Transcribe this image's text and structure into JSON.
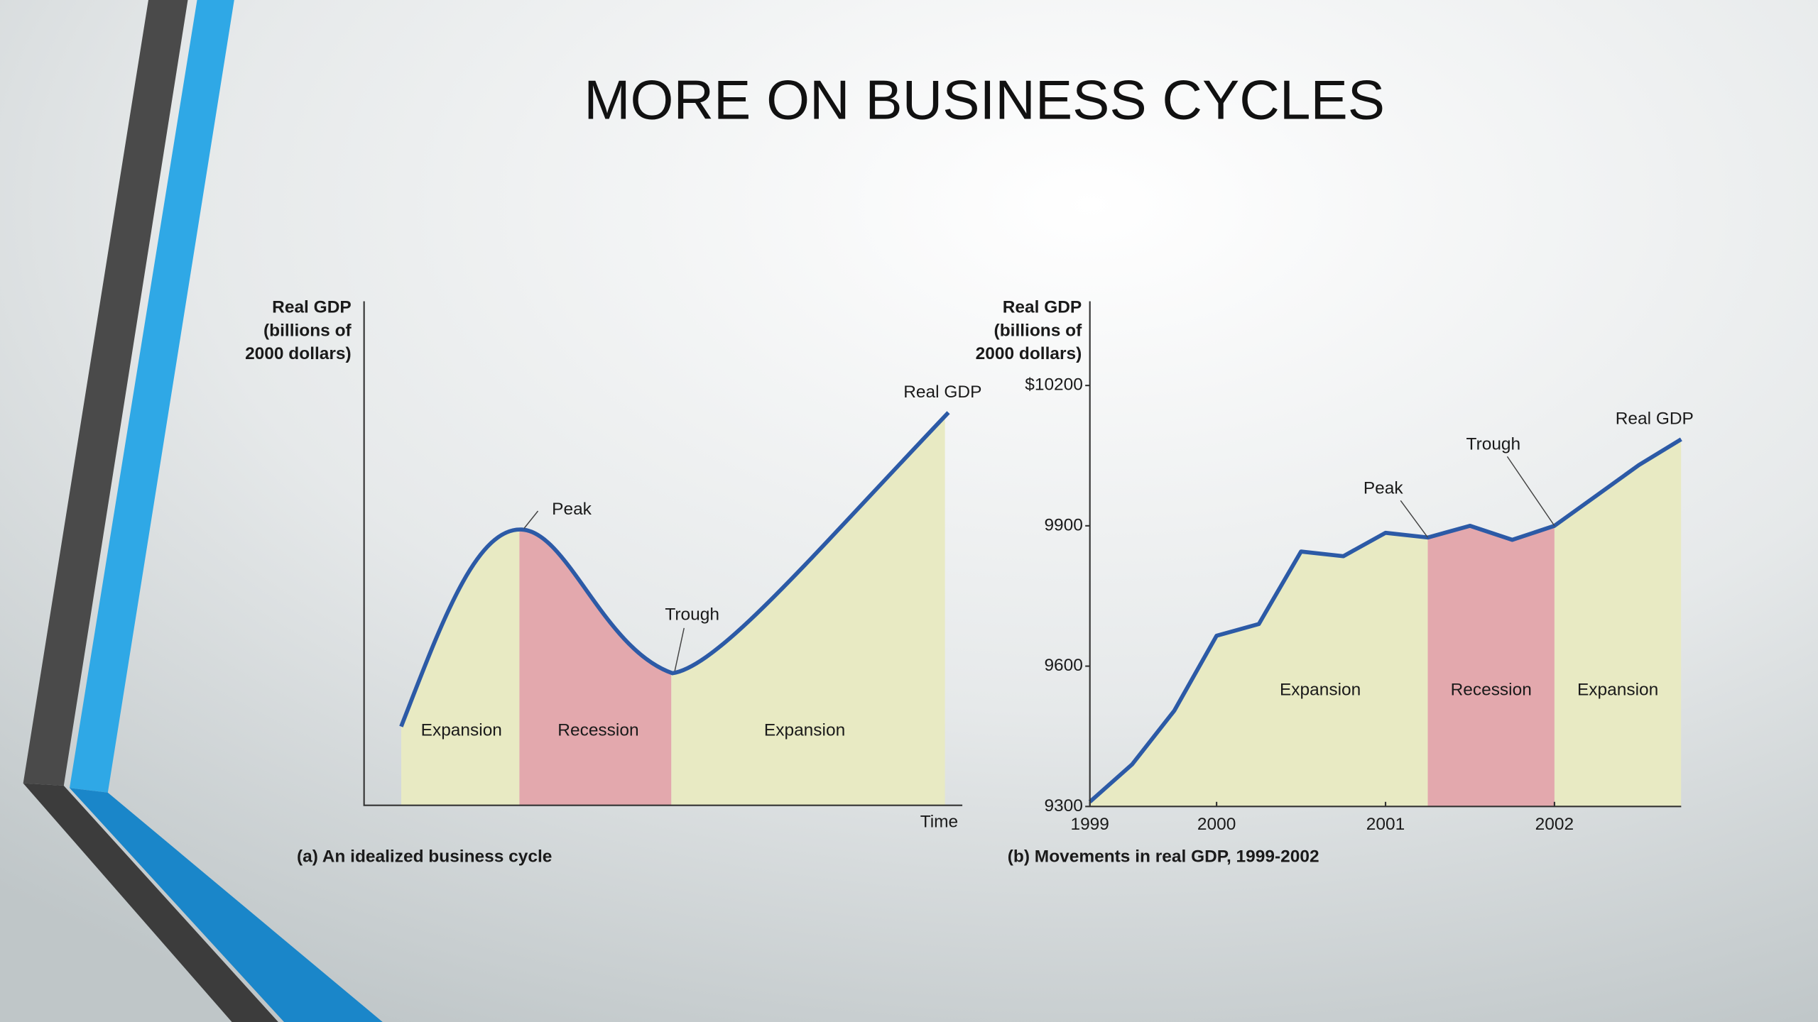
{
  "slide_title": "MORE ON BUSINESS CYCLES",
  "idealized": {
    "y_label": [
      "Real GDP",
      "(billions of",
      "2000 dollars)"
    ],
    "x_label": "Time",
    "caption": "(a)  An idealized business cycle",
    "phases": [
      "Expansion",
      "Recession",
      "Expansion"
    ],
    "annotations": [
      "Peak",
      "Trough",
      "Real GDP"
    ]
  },
  "chart_data": {
    "type": "line",
    "caption": "(b)  Movements in real GDP, 1999-2002",
    "y_label": [
      "Real GDP",
      "(billions of",
      "2000 dollars)"
    ],
    "x": [
      1999.25,
      1999.5,
      1999.75,
      2000,
      2000.25,
      2000.5,
      2000.75,
      2001,
      2001.25,
      2001.5,
      2001.75,
      2002,
      2002.25,
      2002.5,
      2002.75
    ],
    "series": [
      {
        "name": "Real GDP",
        "color": "#2c5aa6",
        "values": [
          9310,
          9390,
          9505,
          9665,
          9690,
          9845,
          9835,
          9885,
          9875,
          9900,
          9870,
          9900,
          9965,
          10030,
          10085
        ]
      }
    ],
    "xlim": [
      1999.25,
      2002.75
    ],
    "xticks": [
      {
        "value": 1999.25,
        "label": "1999"
      },
      2000,
      2001,
      2002
    ],
    "ylim": [
      9300,
      10380
    ],
    "yticks": [
      9300,
      9600,
      9900,
      {
        "value": 10200,
        "label": "$10200"
      }
    ],
    "phases": [
      {
        "label": "Expansion",
        "start": 1999.25,
        "end": 2001.25,
        "color": "#e8eac3"
      },
      {
        "label": "Recession",
        "start": 2001.25,
        "end": 2002,
        "color": "#e3a8ad"
      },
      {
        "label": "Expansion",
        "start": 2002,
        "end": 2002.75,
        "color": "#e8eac3"
      }
    ],
    "annotations": [
      {
        "text": "Peak",
        "x": 2001.25
      },
      {
        "text": "Trough",
        "x": 2002
      }
    ]
  }
}
